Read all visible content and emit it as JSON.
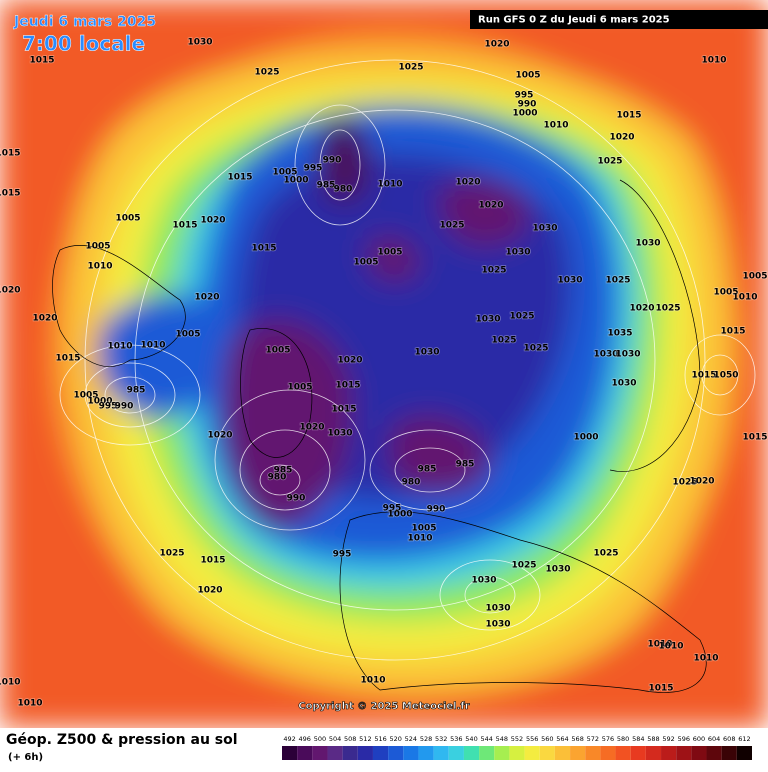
{
  "header": {
    "date": "Jeudi 6 mars 2025",
    "time": "7:00 locale",
    "run": "Run GFS 0 Z du Jeudi 6 mars 2025"
  },
  "footer": {
    "title": "Géop. Z500 & pression au sol",
    "lead": "(+ 6h)",
    "copyright": "Copyright © 2025 Meteociel.fr"
  },
  "colorbar": {
    "values": [
      492,
      496,
      500,
      504,
      508,
      512,
      516,
      520,
      524,
      528,
      532,
      536,
      540,
      544,
      548,
      552,
      556,
      560,
      564,
      568,
      572,
      576,
      580,
      584,
      588,
      592,
      596,
      600,
      604,
      608,
      612
    ],
    "colors": [
      "#2b0038",
      "#4a0b5a",
      "#62176f",
      "#5a2a86",
      "#3a2a8f",
      "#2a2aa6",
      "#1f3fc0",
      "#1c5ad6",
      "#1a78e6",
      "#2299ee",
      "#30b8f0",
      "#3ad0e0",
      "#40e0b0",
      "#6ee878",
      "#a6ee50",
      "#d6f040",
      "#f4ec40",
      "#fad840",
      "#fbbf38",
      "#fba430",
      "#f98828",
      "#f66c24",
      "#f25222",
      "#e83a20",
      "#d42a1e",
      "#bb1c1a",
      "#9e1216",
      "#7f0a12",
      "#5e060c",
      "#3a0306",
      "#100000"
    ]
  },
  "pressure_labels": [
    1030,
    1015,
    1025,
    1025,
    1020,
    1005,
    1010,
    995,
    990,
    1000,
    1010,
    1015,
    1020,
    1025,
    1015,
    1015,
    990,
    995,
    1005,
    1000,
    985,
    980,
    1010,
    1015,
    1020,
    1020,
    1025,
    1030,
    1030,
    1030,
    1025,
    1030,
    1025,
    1005,
    1005,
    1015,
    1020,
    1015,
    1005,
    1005,
    1010,
    1020,
    1020,
    1020,
    1005,
    1010,
    1010,
    1015,
    1005,
    1020,
    1030,
    1030,
    1025,
    1025,
    1025,
    1035,
    1030,
    1030,
    1030,
    985,
    1005,
    1000,
    995,
    990,
    1005,
    1015,
    1015,
    1020,
    1030,
    1020,
    1000,
    985,
    985,
    980,
    985,
    980,
    990,
    995,
    990,
    1000,
    1005,
    1010,
    1025,
    1015,
    995,
    1020,
    1030,
    1025,
    1030,
    1025,
    1030,
    1030,
    1025,
    1020,
    1015,
    1050,
    1005,
    1010,
    1005,
    1015,
    1015,
    1010,
    1010,
    1015,
    1010,
    1010,
    1010,
    1010,
    1020,
    1025
  ]
}
